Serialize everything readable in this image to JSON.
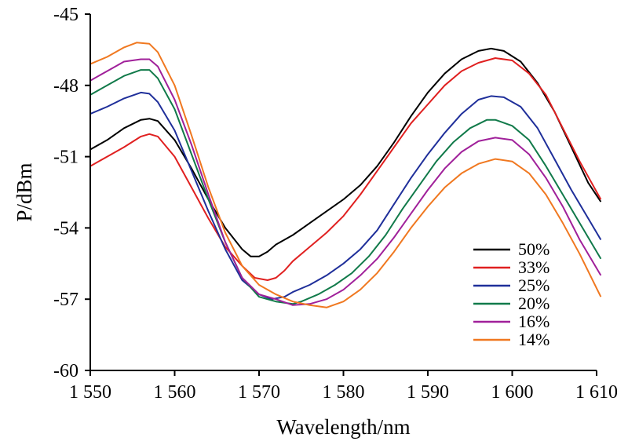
{
  "chart_data": {
    "type": "line",
    "xlabel": "Wavelength/nm",
    "ylabel": "P/dBm",
    "xlim": [
      1550,
      1610
    ],
    "ylim": [
      -60,
      -45
    ],
    "xticks": [
      1550,
      1560,
      1570,
      1580,
      1590,
      1600,
      1610
    ],
    "xtick_labels": [
      "1 550",
      "1 560",
      "1 570",
      "1 580",
      "1 590",
      "1 600",
      "1 610"
    ],
    "yticks": [
      -45,
      -48,
      -51,
      -54,
      -57,
      -60
    ],
    "ytick_labels": [
      "-45",
      "-48",
      "-51",
      "-54",
      "-57",
      "-60"
    ],
    "legend_position": "bottom-right",
    "grid": false,
    "series": [
      {
        "name": "50%",
        "color": "#000000",
        "points": [
          [
            1550,
            -50.7
          ],
          [
            1552,
            -50.3
          ],
          [
            1554,
            -49.8
          ],
          [
            1556,
            -49.45
          ],
          [
            1557,
            -49.4
          ],
          [
            1558,
            -49.5
          ],
          [
            1560,
            -50.3
          ],
          [
            1562,
            -51.5
          ],
          [
            1564,
            -52.8
          ],
          [
            1566,
            -54.0
          ],
          [
            1568,
            -54.9
          ],
          [
            1569,
            -55.2
          ],
          [
            1570,
            -55.2
          ],
          [
            1571,
            -55.0
          ],
          [
            1572,
            -54.7
          ],
          [
            1574,
            -54.3
          ],
          [
            1576,
            -53.8
          ],
          [
            1578,
            -53.3
          ],
          [
            1580,
            -52.8
          ],
          [
            1582,
            -52.2
          ],
          [
            1584,
            -51.4
          ],
          [
            1586,
            -50.4
          ],
          [
            1588,
            -49.3
          ],
          [
            1590,
            -48.3
          ],
          [
            1592,
            -47.5
          ],
          [
            1594,
            -46.9
          ],
          [
            1596,
            -46.55
          ],
          [
            1597.5,
            -46.45
          ],
          [
            1599,
            -46.55
          ],
          [
            1601,
            -47.0
          ],
          [
            1603,
            -47.9
          ],
          [
            1605,
            -49.1
          ],
          [
            1607,
            -50.6
          ],
          [
            1609,
            -52.1
          ],
          [
            1610.5,
            -52.9
          ]
        ]
      },
      {
        "name": "33%",
        "color": "#e02020",
        "points": [
          [
            1550,
            -51.4
          ],
          [
            1552,
            -51.0
          ],
          [
            1554,
            -50.6
          ],
          [
            1556,
            -50.15
          ],
          [
            1557,
            -50.05
          ],
          [
            1558,
            -50.15
          ],
          [
            1560,
            -51.0
          ],
          [
            1562,
            -52.3
          ],
          [
            1564,
            -53.6
          ],
          [
            1566,
            -54.8
          ],
          [
            1568,
            -55.6
          ],
          [
            1569.5,
            -56.1
          ],
          [
            1571,
            -56.2
          ],
          [
            1572,
            -56.1
          ],
          [
            1573,
            -55.8
          ],
          [
            1574,
            -55.4
          ],
          [
            1576,
            -54.8
          ],
          [
            1578,
            -54.2
          ],
          [
            1580,
            -53.5
          ],
          [
            1582,
            -52.6
          ],
          [
            1584,
            -51.6
          ],
          [
            1586,
            -50.6
          ],
          [
            1588,
            -49.6
          ],
          [
            1590,
            -48.8
          ],
          [
            1592,
            -48.0
          ],
          [
            1594,
            -47.4
          ],
          [
            1596,
            -47.05
          ],
          [
            1598,
            -46.85
          ],
          [
            1600,
            -46.95
          ],
          [
            1602,
            -47.5
          ],
          [
            1604,
            -48.4
          ],
          [
            1606,
            -49.8
          ],
          [
            1608,
            -51.2
          ],
          [
            1610.5,
            -52.8
          ]
        ]
      },
      {
        "name": "25%",
        "color": "#1f2f9a",
        "points": [
          [
            1550,
            -49.2
          ],
          [
            1552,
            -48.9
          ],
          [
            1554,
            -48.55
          ],
          [
            1556,
            -48.3
          ],
          [
            1557,
            -48.35
          ],
          [
            1558,
            -48.7
          ],
          [
            1560,
            -49.9
          ],
          [
            1562,
            -51.6
          ],
          [
            1564,
            -53.3
          ],
          [
            1566,
            -54.9
          ],
          [
            1568,
            -56.2
          ],
          [
            1570,
            -56.8
          ],
          [
            1571.5,
            -57.0
          ],
          [
            1573,
            -56.9
          ],
          [
            1574,
            -56.7
          ],
          [
            1576,
            -56.4
          ],
          [
            1578,
            -56.0
          ],
          [
            1580,
            -55.5
          ],
          [
            1582,
            -54.9
          ],
          [
            1584,
            -54.1
          ],
          [
            1586,
            -53.0
          ],
          [
            1588,
            -51.9
          ],
          [
            1590,
            -50.9
          ],
          [
            1592,
            -50.0
          ],
          [
            1594,
            -49.2
          ],
          [
            1596,
            -48.6
          ],
          [
            1597.5,
            -48.45
          ],
          [
            1599,
            -48.5
          ],
          [
            1601,
            -48.9
          ],
          [
            1603,
            -49.8
          ],
          [
            1605,
            -51.1
          ],
          [
            1607,
            -52.4
          ],
          [
            1609,
            -53.6
          ],
          [
            1610.5,
            -54.5
          ]
        ]
      },
      {
        "name": "20%",
        "color": "#117a4a",
        "points": [
          [
            1550,
            -48.4
          ],
          [
            1552,
            -48.0
          ],
          [
            1554,
            -47.6
          ],
          [
            1556,
            -47.35
          ],
          [
            1557,
            -47.35
          ],
          [
            1558,
            -47.7
          ],
          [
            1560,
            -49.0
          ],
          [
            1562,
            -50.9
          ],
          [
            1564,
            -52.8
          ],
          [
            1566,
            -54.6
          ],
          [
            1568,
            -56.1
          ],
          [
            1570,
            -56.9
          ],
          [
            1572,
            -57.1
          ],
          [
            1574,
            -57.2
          ],
          [
            1575,
            -57.1
          ],
          [
            1577,
            -56.8
          ],
          [
            1579,
            -56.4
          ],
          [
            1581,
            -55.9
          ],
          [
            1583,
            -55.2
          ],
          [
            1585,
            -54.3
          ],
          [
            1587,
            -53.2
          ],
          [
            1589,
            -52.2
          ],
          [
            1591,
            -51.2
          ],
          [
            1593,
            -50.4
          ],
          [
            1595,
            -49.8
          ],
          [
            1597,
            -49.45
          ],
          [
            1598,
            -49.45
          ],
          [
            1600,
            -49.7
          ],
          [
            1602,
            -50.3
          ],
          [
            1604,
            -51.4
          ],
          [
            1606,
            -52.6
          ],
          [
            1608,
            -53.8
          ],
          [
            1610.5,
            -55.3
          ]
        ]
      },
      {
        "name": "16%",
        "color": "#a0209a",
        "points": [
          [
            1550,
            -47.8
          ],
          [
            1552,
            -47.4
          ],
          [
            1554,
            -47.0
          ],
          [
            1556,
            -46.9
          ],
          [
            1557,
            -46.9
          ],
          [
            1558,
            -47.2
          ],
          [
            1560,
            -48.6
          ],
          [
            1562,
            -50.5
          ],
          [
            1564,
            -52.6
          ],
          [
            1566,
            -54.6
          ],
          [
            1568,
            -56.1
          ],
          [
            1570,
            -56.8
          ],
          [
            1572,
            -57.0
          ],
          [
            1574,
            -57.25
          ],
          [
            1576,
            -57.2
          ],
          [
            1578,
            -57.0
          ],
          [
            1580,
            -56.6
          ],
          [
            1582,
            -56.0
          ],
          [
            1584,
            -55.3
          ],
          [
            1586,
            -54.4
          ],
          [
            1588,
            -53.4
          ],
          [
            1590,
            -52.4
          ],
          [
            1592,
            -51.5
          ],
          [
            1594,
            -50.8
          ],
          [
            1596,
            -50.35
          ],
          [
            1598,
            -50.2
          ],
          [
            1600,
            -50.3
          ],
          [
            1602,
            -50.9
          ],
          [
            1604,
            -51.9
          ],
          [
            1606,
            -53.1
          ],
          [
            1608,
            -54.5
          ],
          [
            1610.5,
            -56.0
          ]
        ]
      },
      {
        "name": "14%",
        "color": "#f07820",
        "points": [
          [
            1550,
            -47.1
          ],
          [
            1552,
            -46.8
          ],
          [
            1554,
            -46.4
          ],
          [
            1555.5,
            -46.2
          ],
          [
            1557,
            -46.25
          ],
          [
            1558,
            -46.6
          ],
          [
            1560,
            -48.0
          ],
          [
            1562,
            -50.1
          ],
          [
            1564,
            -52.3
          ],
          [
            1566,
            -54.2
          ],
          [
            1568,
            -55.6
          ],
          [
            1570,
            -56.4
          ],
          [
            1572,
            -56.8
          ],
          [
            1574,
            -57.1
          ],
          [
            1576,
            -57.25
          ],
          [
            1578,
            -57.35
          ],
          [
            1580,
            -57.1
          ],
          [
            1582,
            -56.6
          ],
          [
            1584,
            -55.9
          ],
          [
            1586,
            -55.0
          ],
          [
            1588,
            -54.0
          ],
          [
            1590,
            -53.1
          ],
          [
            1592,
            -52.3
          ],
          [
            1594,
            -51.7
          ],
          [
            1596,
            -51.3
          ],
          [
            1598,
            -51.1
          ],
          [
            1600,
            -51.2
          ],
          [
            1602,
            -51.7
          ],
          [
            1604,
            -52.6
          ],
          [
            1606,
            -53.8
          ],
          [
            1608,
            -55.1
          ],
          [
            1610.5,
            -56.9
          ]
        ]
      }
    ]
  }
}
